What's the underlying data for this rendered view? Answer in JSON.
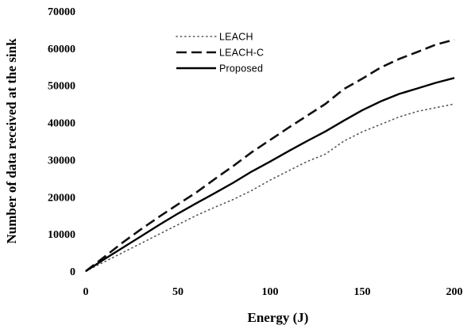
{
  "chart_data": {
    "type": "line",
    "title": "",
    "xlabel": "Energy (J)",
    "ylabel": "Number of data received at the sink",
    "xlim": [
      0,
      200
    ],
    "ylim": [
      0,
      70000
    ],
    "xticks": [
      "0",
      "50",
      "100",
      "150",
      "200"
    ],
    "yticks": [
      "0",
      "10000",
      "20000",
      "30000",
      "40000",
      "50000",
      "60000",
      "70000"
    ],
    "grid": false,
    "legend_position": "top-left",
    "x": [
      0,
      10,
      20,
      30,
      40,
      50,
      60,
      70,
      80,
      90,
      100,
      110,
      120,
      130,
      140,
      150,
      160,
      170,
      180,
      190,
      200
    ],
    "series": [
      {
        "name": "LEACH",
        "style": "dotted",
        "color": "#555555",
        "values": [
          0,
          2500,
          5000,
          7500,
          10000,
          12500,
          15000,
          17200,
          19300,
          21700,
          24500,
          27000,
          29500,
          31500,
          35000,
          37500,
          39500,
          41500,
          43000,
          44000,
          45000
        ]
      },
      {
        "name": "LEACH-C",
        "style": "dashed",
        "color": "#111111",
        "values": [
          0,
          3800,
          7700,
          11300,
          14700,
          18000,
          21200,
          24800,
          28300,
          32000,
          35300,
          38600,
          41800,
          45000,
          49000,
          51800,
          54800,
          57100,
          59000,
          61000,
          62300
        ]
      },
      {
        "name": "Proposed",
        "style": "solid",
        "color": "#000000",
        "values": [
          0,
          3200,
          6300,
          9400,
          12500,
          15500,
          18300,
          21000,
          23800,
          26800,
          29500,
          32300,
          35000,
          37600,
          40500,
          43300,
          45700,
          47700,
          49200,
          50700,
          52000
        ]
      }
    ]
  }
}
